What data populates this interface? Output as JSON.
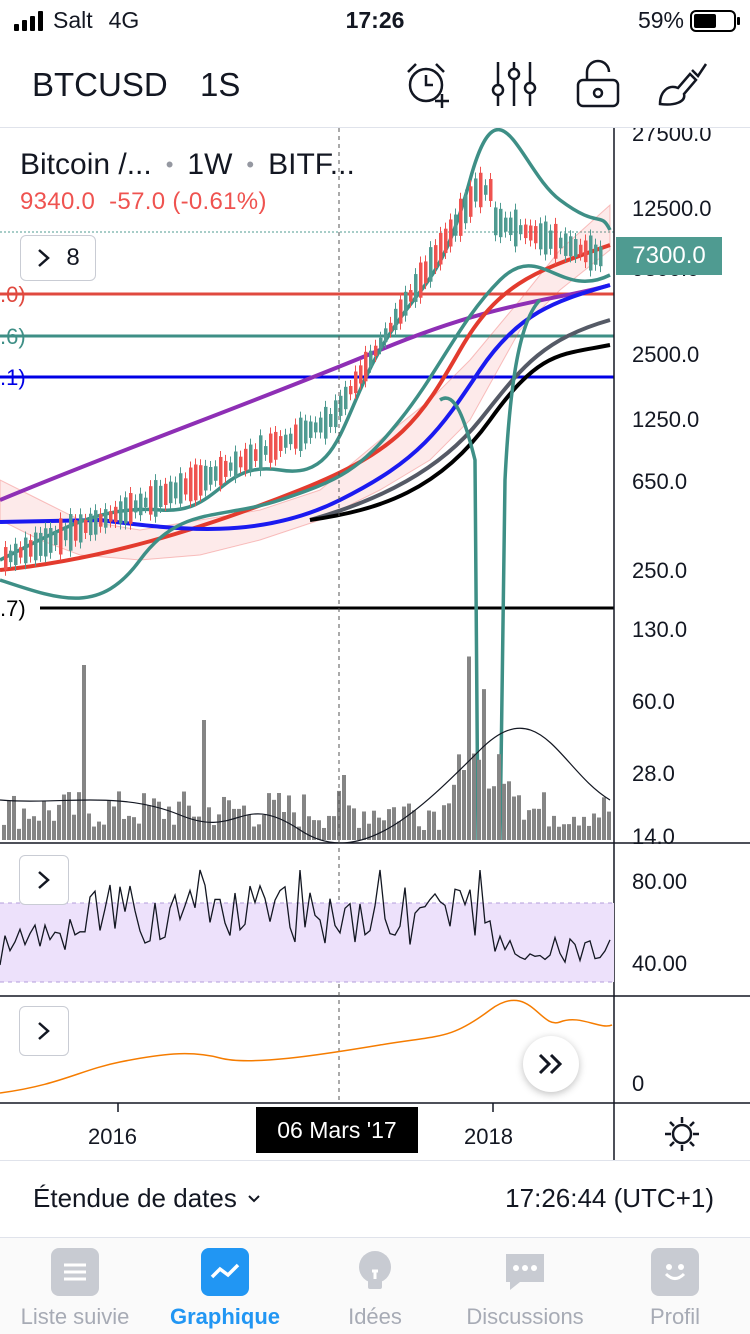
{
  "status_bar": {
    "carrier": "Salt",
    "network": "4G",
    "time": "17:26",
    "battery": "59%",
    "battery_level": 0.59
  },
  "toolbar": {
    "symbol": "BTCUSD",
    "resolution": "1S",
    "icons": [
      "alarm-add-icon",
      "indicators-icon",
      "lock-icon",
      "drawing-tools-icon"
    ]
  },
  "legend": {
    "title": "Bitcoin /...",
    "interval": "1W",
    "exchange": "BITF...",
    "values": "9340.0  -57.0 (-0.61%)",
    "indicator_count": "8"
  },
  "line_labels": {
    "red": ".0)",
    "teal": ".6)",
    "blue": ".1)",
    "black": ".7)"
  },
  "price_axis": {
    "labels": [
      "27500.0",
      "12500.0",
      "2500.0",
      "1250.0",
      "650.0",
      "250.0",
      "130.0"
    ],
    "current_price": "7300.0",
    "current_price_color": "#4f9b91",
    "hidden_label": "9800.0"
  },
  "volume_axis": {
    "labels": [
      "60.0",
      "28.0",
      "14.0"
    ]
  },
  "rsi_axis": {
    "labels": [
      "80.00",
      "40.00"
    ]
  },
  "osc_axis": {
    "labels": [
      "0"
    ]
  },
  "time_axis": {
    "labels": [
      "2016",
      "2018"
    ],
    "crosshair_date": "06 Mars '17"
  },
  "range_bar": {
    "label": "Étendue de dates",
    "time": "17:26:44 (UTC+1)"
  },
  "tabs": [
    {
      "label": "Liste suivie",
      "icon": "watchlist-icon",
      "active": false
    },
    {
      "label": "Graphique",
      "icon": "chart-icon",
      "active": true
    },
    {
      "label": "Idées",
      "icon": "ideas-icon",
      "active": false
    },
    {
      "label": "Discussions",
      "icon": "discussions-icon",
      "active": false
    },
    {
      "label": "Profil",
      "icon": "profile-icon",
      "active": false
    }
  ],
  "colors": {
    "up": "#4f9b91",
    "down": "#ef5350",
    "accent": "#2196f3",
    "rsi_band": "#ede1fb",
    "osc_line": "#f57c00"
  }
}
